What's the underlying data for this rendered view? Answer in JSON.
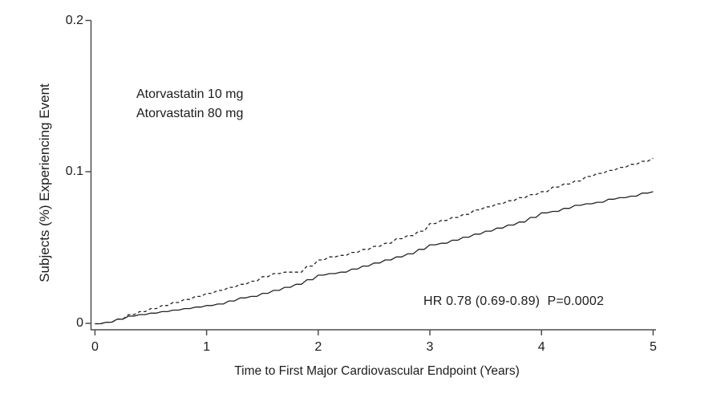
{
  "chart_data": {
    "type": "line",
    "title": "",
    "xlabel": "Time to First Major Cardiovascular Endpoint (Years)",
    "ylabel": "Subjects (%) Experiencing Event",
    "xlim": [
      0,
      5
    ],
    "ylim": [
      0,
      0.2
    ],
    "x_tick_labels": [
      "0",
      "1",
      "2",
      "3",
      "4",
      "5"
    ],
    "y_tick_labels": [
      "0.2",
      "0.1",
      "0"
    ],
    "grid": false,
    "legend_position": "inside-upper-left",
    "annotation": "HR 0.78 (0.69-0.89)  P=0.0002",
    "line_color": "#222222",
    "axis_color": "#4d4d4d",
    "x": [
      0,
      0.1,
      0.2,
      0.3,
      0.4,
      0.5,
      0.6,
      0.7,
      0.8,
      0.9,
      1.0,
      1.1,
      1.2,
      1.3,
      1.4,
      1.5,
      1.6,
      1.7,
      1.8,
      1.9,
      2.0,
      2.1,
      2.2,
      2.3,
      2.4,
      2.5,
      2.6,
      2.7,
      2.8,
      2.9,
      3.0,
      3.1,
      3.2,
      3.3,
      3.4,
      3.5,
      3.6,
      3.7,
      3.8,
      3.9,
      4.0,
      4.1,
      4.2,
      4.3,
      4.4,
      4.5,
      4.6,
      4.7,
      4.8,
      4.9,
      5.0
    ],
    "series": [
      {
        "name": "Atorvastatin 10 mg",
        "line_style": "dashed",
        "color": "#222222",
        "values": [
          0.0,
          0.001,
          0.003,
          0.006,
          0.008,
          0.01,
          0.012,
          0.014,
          0.016,
          0.018,
          0.02,
          0.022,
          0.024,
          0.026,
          0.028,
          0.031,
          0.033,
          0.034,
          0.034,
          0.038,
          0.042,
          0.044,
          0.045,
          0.047,
          0.049,
          0.051,
          0.053,
          0.056,
          0.058,
          0.061,
          0.066,
          0.068,
          0.07,
          0.072,
          0.075,
          0.077,
          0.079,
          0.081,
          0.083,
          0.085,
          0.087,
          0.09,
          0.092,
          0.094,
          0.097,
          0.099,
          0.101,
          0.103,
          0.105,
          0.107,
          0.109
        ]
      },
      {
        "name": "Atorvastatin 80 mg",
        "line_style": "solid",
        "color": "#222222",
        "values": [
          0.0,
          0.001,
          0.003,
          0.005,
          0.006,
          0.007,
          0.008,
          0.009,
          0.01,
          0.011,
          0.012,
          0.013,
          0.015,
          0.017,
          0.018,
          0.02,
          0.022,
          0.024,
          0.026,
          0.029,
          0.032,
          0.033,
          0.034,
          0.036,
          0.038,
          0.04,
          0.042,
          0.044,
          0.046,
          0.049,
          0.052,
          0.053,
          0.055,
          0.057,
          0.059,
          0.061,
          0.063,
          0.065,
          0.067,
          0.07,
          0.073,
          0.074,
          0.076,
          0.078,
          0.079,
          0.08,
          0.082,
          0.083,
          0.084,
          0.086,
          0.087
        ]
      }
    ]
  }
}
